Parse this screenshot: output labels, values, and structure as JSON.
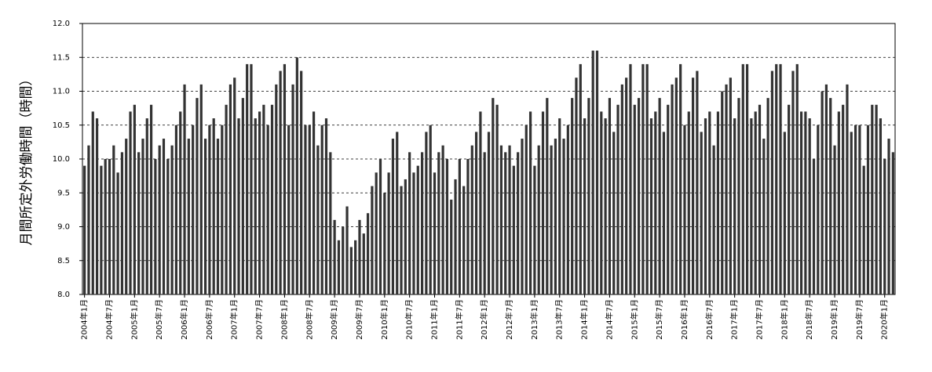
{
  "chart_data": {
    "type": "bar",
    "y_label": "月間所定外労働時間（時間）",
    "color": "#333333",
    "grid": true,
    "ylim": [
      8,
      12
    ],
    "yticks": [
      {
        "value": 8,
        "label": "8.0"
      },
      8.5,
      {
        "value": 9,
        "label": "9.0"
      },
      9.5,
      {
        "value": 10,
        "label": "10.0"
      },
      10.5,
      {
        "value": 11,
        "label": "11.0"
      },
      11.5,
      {
        "value": 12,
        "label": "12.0"
      }
    ],
    "categories": [
      "2004年1月",
      null,
      null,
      null,
      null,
      null,
      "2004年7月",
      null,
      null,
      null,
      null,
      null,
      "2005年1月",
      null,
      null,
      null,
      null,
      null,
      "2005年7月",
      null,
      null,
      null,
      null,
      null,
      "2006年1月",
      null,
      null,
      null,
      null,
      null,
      "2006年7月",
      null,
      null,
      null,
      null,
      null,
      "2007年1月",
      null,
      null,
      null,
      null,
      null,
      "2007年7月",
      null,
      null,
      null,
      null,
      null,
      "2008年1月",
      null,
      null,
      null,
      null,
      null,
      "2008年7月",
      null,
      null,
      null,
      null,
      null,
      "2009年1月",
      null,
      null,
      null,
      null,
      null,
      "2009年7月",
      null,
      null,
      null,
      null,
      null,
      "2010年1月",
      null,
      null,
      null,
      null,
      null,
      "2010年7月",
      null,
      null,
      null,
      null,
      null,
      "2011年1月",
      null,
      null,
      null,
      null,
      null,
      "2011年7月",
      null,
      null,
      null,
      null,
      null,
      "2012年1月",
      null,
      null,
      null,
      null,
      null,
      "2012年7月",
      null,
      null,
      null,
      null,
      null,
      "2013年1月",
      null,
      null,
      null,
      null,
      null,
      "2013年7月",
      null,
      null,
      null,
      null,
      null,
      "2014年1月",
      null,
      null,
      null,
      null,
      null,
      "2014年7月",
      null,
      null,
      null,
      null,
      null,
      "2015年1月",
      null,
      null,
      null,
      null,
      null,
      "2015年7月",
      null,
      null,
      null,
      null,
      null,
      "2016年1月",
      null,
      null,
      null,
      null,
      null,
      "2016年7月",
      null,
      null,
      null,
      null,
      null,
      "2017年1月",
      null,
      null,
      null,
      null,
      null,
      "2017年7月",
      null,
      null,
      null,
      null,
      null,
      "2018年1月",
      null,
      null,
      null,
      null,
      null,
      "2018年7月",
      null,
      null,
      null,
      null,
      null,
      "2019年1月",
      null,
      null,
      null,
      null,
      null,
      "2019年7月",
      null,
      null,
      null,
      null,
      null,
      "2020年1月",
      null,
      null
    ],
    "values": [
      9.9,
      10.2,
      10.7,
      10.6,
      9.9,
      10.0,
      10.0,
      10.2,
      9.8,
      10.1,
      10.3,
      10.7,
      10.8,
      10.1,
      10.3,
      10.6,
      10.8,
      10.0,
      10.2,
      10.3,
      10.0,
      10.2,
      10.5,
      10.7,
      11.1,
      10.3,
      10.5,
      10.9,
      11.1,
      10.3,
      10.5,
      10.6,
      10.3,
      10.5,
      10.8,
      11.1,
      11.2,
      10.6,
      10.9,
      11.4,
      11.4,
      10.6,
      10.7,
      10.8,
      10.5,
      10.8,
      11.1,
      11.3,
      11.4,
      10.5,
      11.1,
      11.5,
      11.3,
      10.5,
      10.5,
      10.7,
      10.2,
      10.5,
      10.6,
      10.1,
      9.1,
      8.8,
      9.0,
      9.3,
      8.7,
      8.8,
      9.1,
      8.9,
      9.2,
      9.6,
      9.8,
      10.0,
      9.5,
      9.8,
      10.3,
      10.4,
      9.6,
      9.7,
      10.1,
      9.8,
      9.9,
      10.1,
      10.4,
      10.5,
      9.8,
      10.1,
      10.2,
      10.0,
      9.4,
      9.7,
      10.0,
      9.6,
      10.0,
      10.2,
      10.4,
      10.7,
      10.1,
      10.4,
      10.9,
      10.8,
      10.2,
      10.1,
      10.2,
      9.9,
      10.1,
      10.3,
      10.5,
      10.7,
      9.9,
      10.2,
      10.7,
      10.9,
      10.2,
      10.3,
      10.6,
      10.3,
      10.5,
      10.9,
      11.2,
      11.4,
      10.6,
      10.9,
      11.6,
      11.6,
      10.7,
      10.6,
      10.9,
      10.4,
      10.8,
      11.1,
      11.2,
      11.4,
      10.8,
      10.9,
      11.4,
      11.4,
      10.6,
      10.7,
      10.9,
      10.4,
      10.8,
      11.1,
      11.2,
      11.4,
      10.5,
      10.7,
      11.2,
      11.3,
      10.4,
      10.6,
      10.7,
      10.2,
      10.7,
      11.0,
      11.1,
      11.2,
      10.6,
      10.9,
      11.4,
      11.4,
      10.6,
      10.7,
      10.8,
      10.3,
      10.9,
      11.3,
      11.4,
      11.4,
      10.4,
      10.8,
      11.3,
      11.4,
      10.7,
      10.7,
      10.6,
      10.0,
      10.5,
      11.0,
      11.1,
      10.9,
      10.2,
      10.7,
      10.8,
      11.1,
      10.4,
      10.5,
      10.5,
      9.9,
      10.5,
      10.8,
      10.8,
      10.6,
      10.0,
      10.3,
      10.1
    ]
  }
}
